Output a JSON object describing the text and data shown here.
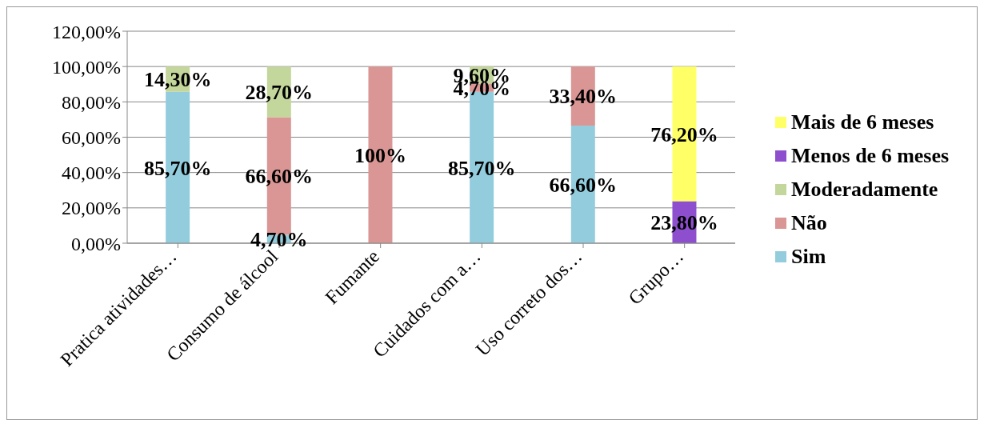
{
  "chart_data": {
    "type": "bar",
    "stacked": true,
    "categories": [
      "Pratica atividades…",
      "Consumo de álcool",
      "Fumante",
      "Cuidados com a…",
      "Uso correto dos…",
      "Grupo…"
    ],
    "series": [
      {
        "name": "Sim",
        "color": "#93cddd",
        "values": [
          85.7,
          4.7,
          null,
          85.7,
          66.6,
          null
        ],
        "value_labels": [
          "85,70%",
          "4,70%",
          null,
          "85,70%",
          "66,60%",
          null
        ]
      },
      {
        "name": "Não",
        "color": "#d99694",
        "values": [
          null,
          66.6,
          100,
          4.7,
          33.4,
          null
        ],
        "value_labels": [
          null,
          "66,60%",
          "100%",
          "4,70%",
          "33,40%",
          null
        ]
      },
      {
        "name": "Moderadamente",
        "color": "#c3d69b",
        "values": [
          14.3,
          28.7,
          null,
          9.6,
          null,
          null
        ],
        "value_labels": [
          "14,30%",
          "28,70%",
          null,
          "9,60%",
          null,
          null
        ]
      },
      {
        "name": "Menos de 6 meses",
        "color": "#8e4fce",
        "values": [
          null,
          null,
          null,
          null,
          null,
          23.8
        ],
        "value_labels": [
          null,
          null,
          null,
          null,
          null,
          "23,80%"
        ]
      },
      {
        "name": "Mais de 6 meses",
        "color": "#ffff66",
        "values": [
          null,
          null,
          null,
          null,
          null,
          76.2
        ],
        "value_labels": [
          null,
          null,
          null,
          null,
          null,
          "76,20%"
        ]
      }
    ],
    "ylim": [
      0,
      120
    ],
    "yticks": [
      {
        "value": 0,
        "label": "0,00%"
      },
      {
        "value": 20,
        "label": "20,00%"
      },
      {
        "value": 40,
        "label": "40,00%"
      },
      {
        "value": 60,
        "label": "60,00%"
      },
      {
        "value": 80,
        "label": "80,00%"
      },
      {
        "value": 100,
        "label": "100,00%"
      },
      {
        "value": 120,
        "label": "120,00%"
      }
    ],
    "grid": "y",
    "legend": "right"
  }
}
